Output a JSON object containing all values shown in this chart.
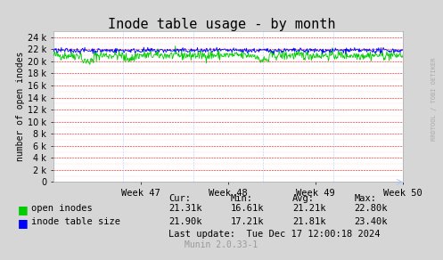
{
  "title": "Inode table usage - by month",
  "ylabel": "number of open inodes",
  "background_color": "#d6d6d6",
  "plot_bg_color": "#ffffff",
  "grid_color_major": "#ff0000",
  "grid_color_minor": "#ffcccc",
  "x_tick_labels": [
    "Week 47",
    "Week 48",
    "Week 49",
    "Week 50"
  ],
  "y_ticks": [
    0,
    2000,
    4000,
    6000,
    8000,
    10000,
    12000,
    14000,
    16000,
    18000,
    20000,
    22000,
    24000
  ],
  "ylim": [
    0,
    25000
  ],
  "open_inodes_color": "#00cc00",
  "inode_table_color": "#0000ff",
  "open_inodes_mean": 21210,
  "open_inodes_min": 16610,
  "open_inodes_max": 22800,
  "open_inodes_cur": 21310,
  "inode_table_mean": 21810,
  "inode_table_min": 17210,
  "inode_table_max": 23400,
  "inode_table_cur": 21900,
  "last_update": "Last update:  Tue Dec 17 12:00:18 2024",
  "munin_label": "Munin 2.0.33-1",
  "rrdtool_label": "RRDTOOL / TOBI OETIKER",
  "n_points": 600
}
